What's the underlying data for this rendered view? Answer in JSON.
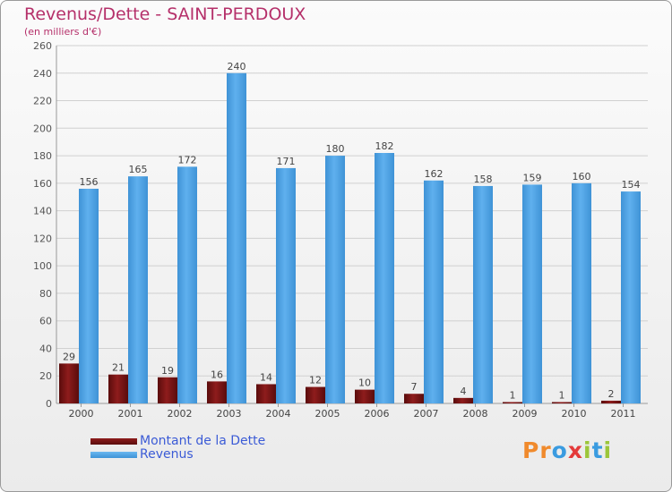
{
  "title": "Revenus/Dette - SAINT-PERDOUX",
  "subtitle": "(en milliers d'€)",
  "logo_text": "Proxiti",
  "colors": {
    "dette": "#7a1414",
    "revenus": "#4ea3e3",
    "title": "#b5306a",
    "legend_text": "#3b5bd6"
  },
  "chart_data": {
    "type": "bar",
    "categories": [
      "2000",
      "2001",
      "2002",
      "2003",
      "2004",
      "2005",
      "2006",
      "2007",
      "2008",
      "2009",
      "2010",
      "2011"
    ],
    "series": [
      {
        "name": "Montant de la Dette",
        "values": [
          29,
          21,
          19,
          16,
          14,
          12,
          10,
          7,
          4,
          1,
          1,
          2
        ]
      },
      {
        "name": "Revenus",
        "values": [
          156,
          165,
          172,
          240,
          171,
          180,
          182,
          162,
          158,
          159,
          160,
          154
        ]
      }
    ],
    "ylim": [
      0,
      260
    ],
    "yticks": [
      0,
      20,
      40,
      60,
      80,
      100,
      120,
      140,
      160,
      180,
      200,
      220,
      240,
      260
    ],
    "grid": true,
    "legend_position": "bottom-left"
  }
}
